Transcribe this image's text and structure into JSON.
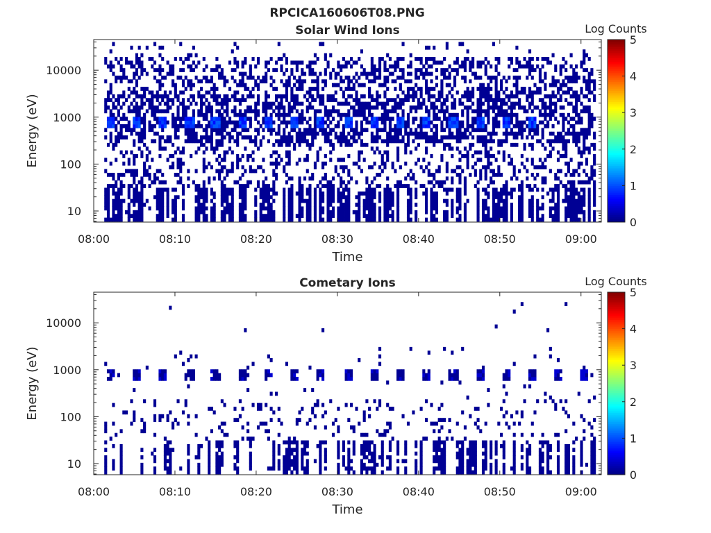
{
  "figure_title": "RPCICA160606T08.PNG",
  "chart_data": [
    {
      "type": "heatmap",
      "title": "Solar Wind Ions",
      "xlabel": "Time",
      "ylabel": "Energy (eV)",
      "x_ticks": [
        "08:00",
        "08:10",
        "08:20",
        "08:30",
        "08:40",
        "08:50",
        "09:00"
      ],
      "x_range_minutes": [
        0,
        62.5
      ],
      "y_scale": "log",
      "y_range": [
        5.8,
        45000
      ],
      "y_ticks": [
        {
          "value": 10,
          "label": "10"
        },
        {
          "value": 100,
          "label": "100"
        },
        {
          "value": 1000,
          "label": "1000"
        },
        {
          "value": 10000,
          "label": "10000"
        }
      ],
      "data_start_minute": 1.3,
      "colorbar": {
        "label": "Log Counts",
        "range": [
          0,
          5
        ],
        "ticks": [
          "0",
          "1",
          "2",
          "3",
          "4",
          "5"
        ],
        "colormap": "jet"
      },
      "pattern": {
        "dominant_band_eV": [
          600,
          1500
        ],
        "periodic_peaks_minutes": [
          2,
          5.2,
          8.4,
          11.8,
          15,
          18.3,
          21.6,
          24.8,
          28,
          31.3,
          34.5,
          37.8,
          41,
          44.3,
          47.5,
          50.8,
          53.9
        ],
        "peak_energy_eV": 760,
        "peak_log_counts": 1.1,
        "background_log_counts": 0.1
      }
    },
    {
      "type": "heatmap",
      "title": "Cometary Ions",
      "xlabel": "Time",
      "ylabel": "Energy (eV)",
      "x_ticks": [
        "08:00",
        "08:10",
        "08:20",
        "08:30",
        "08:40",
        "08:50",
        "09:00"
      ],
      "x_range_minutes": [
        0,
        62.5
      ],
      "y_scale": "log",
      "y_range": [
        5.8,
        45000
      ],
      "y_ticks": [
        {
          "value": 10,
          "label": "10"
        },
        {
          "value": 100,
          "label": "100"
        },
        {
          "value": 1000,
          "label": "1000"
        },
        {
          "value": 10000,
          "label": "10000"
        }
      ],
      "data_start_minute": 1.3,
      "colorbar": {
        "label": "Log Counts",
        "range": [
          0,
          5
        ],
        "ticks": [
          "0",
          "1",
          "2",
          "3",
          "4",
          "5"
        ],
        "colormap": "jet"
      },
      "pattern": {
        "periodic_peaks_minutes": [
          2,
          5.4,
          8.6,
          11.8,
          15,
          18.3,
          21.6,
          24.8,
          28,
          31.3,
          34.5,
          37.8,
          41,
          44.3,
          47.5,
          50.8,
          53.9,
          57.1,
          60.3
        ],
        "peak_energy_eV": 760,
        "low_energy_band_eV": [
          6,
          30
        ],
        "peak_log_counts": 0.4,
        "background_log_counts": 0.1
      }
    }
  ],
  "colors": {
    "axis": "#262626",
    "background": "#ffffff"
  }
}
